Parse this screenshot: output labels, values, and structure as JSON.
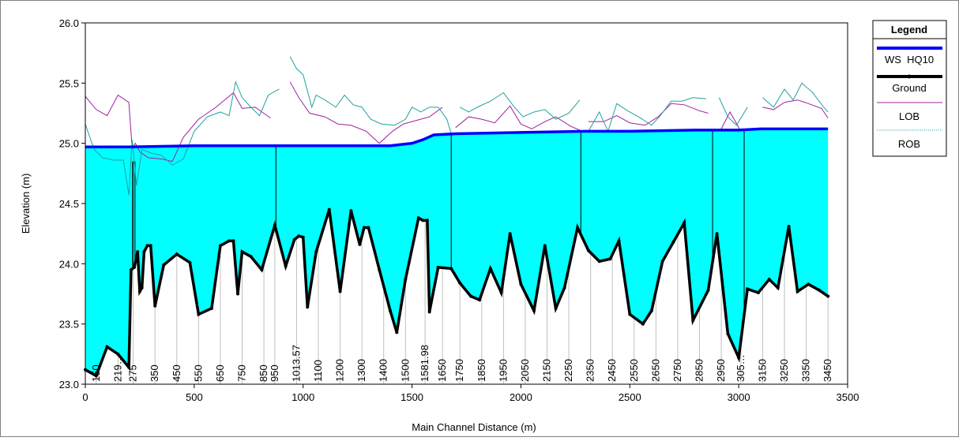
{
  "chart_data": {
    "type": "line",
    "title": "",
    "xlabel": "Main Channel Distance (m)",
    "ylabel": "Elevation (m)",
    "xlim": [
      0,
      3500
    ],
    "ylim": [
      23.0,
      26.0
    ],
    "x_ticks": [
      0,
      500,
      1000,
      1500,
      2000,
      2500,
      3000,
      3500
    ],
    "y_ticks": [
      "23.0",
      "23.5",
      "24.0",
      "24.5",
      "25.0",
      "25.5",
      "26.0"
    ],
    "grid": false,
    "legend": {
      "title": "Legend",
      "placement": "right",
      "entries": [
        {
          "label": "WS  HQ10",
          "color": "#0000ff",
          "style": "thick-line"
        },
        {
          "label": "Ground",
          "color": "#000000",
          "style": "thick-line-markers"
        },
        {
          "label": "LOB",
          "color": "#a020a0",
          "style": "thin-line"
        },
        {
          "label": "ROB",
          "color": "#20a0a0",
          "style": "dotted-line"
        }
      ]
    },
    "water_fill_color": "#00ffff",
    "series": [
      {
        "name": "WS  HQ10",
        "color": "#0000ff",
        "points": [
          [
            0,
            24.97
          ],
          [
            200,
            24.97
          ],
          [
            500,
            24.98
          ],
          [
            1000,
            24.98
          ],
          [
            1400,
            24.98
          ],
          [
            1500,
            25.0
          ],
          [
            1550,
            25.03
          ],
          [
            1600,
            25.07
          ],
          [
            1700,
            25.08
          ],
          [
            2000,
            25.09
          ],
          [
            2300,
            25.1
          ],
          [
            2500,
            25.1
          ],
          [
            2800,
            25.11
          ],
          [
            3000,
            25.11
          ],
          [
            3100,
            25.12
          ],
          [
            3410,
            25.12
          ]
        ]
      },
      {
        "name": "Ground",
        "color": "#000000",
        "points": [
          [
            0,
            23.12
          ],
          [
            50,
            23.07
          ],
          [
            100,
            23.31
          ],
          [
            150,
            23.25
          ],
          [
            200,
            23.14
          ],
          [
            210,
            23.95
          ],
          [
            225,
            23.97
          ],
          [
            240,
            24.1
          ],
          [
            250,
            23.77
          ],
          [
            260,
            23.8
          ],
          [
            270,
            24.1
          ],
          [
            285,
            24.15
          ],
          [
            300,
            24.15
          ],
          [
            320,
            23.65
          ],
          [
            360,
            23.99
          ],
          [
            420,
            24.08
          ],
          [
            480,
            24.01
          ],
          [
            520,
            23.58
          ],
          [
            580,
            23.63
          ],
          [
            620,
            24.15
          ],
          [
            660,
            24.19
          ],
          [
            680,
            24.19
          ],
          [
            700,
            23.75
          ],
          [
            720,
            24.1
          ],
          [
            760,
            24.06
          ],
          [
            810,
            23.95
          ],
          [
            870,
            24.32
          ],
          [
            920,
            23.98
          ],
          [
            960,
            24.2
          ],
          [
            980,
            24.23
          ],
          [
            1000,
            24.22
          ],
          [
            1020,
            23.64
          ],
          [
            1060,
            24.1
          ],
          [
            1120,
            24.45
          ],
          [
            1170,
            23.77
          ],
          [
            1220,
            24.44
          ],
          [
            1260,
            24.16
          ],
          [
            1280,
            24.3
          ],
          [
            1300,
            24.3
          ],
          [
            1350,
            23.95
          ],
          [
            1400,
            23.61
          ],
          [
            1430,
            23.43
          ],
          [
            1470,
            23.87
          ],
          [
            1530,
            24.38
          ],
          [
            1550,
            24.36
          ],
          [
            1570,
            24.36
          ],
          [
            1580,
            23.6
          ],
          [
            1620,
            23.97
          ],
          [
            1680,
            23.96
          ],
          [
            1720,
            23.84
          ],
          [
            1770,
            23.73
          ],
          [
            1810,
            23.7
          ],
          [
            1860,
            23.96
          ],
          [
            1910,
            23.76
          ],
          [
            1950,
            24.25
          ],
          [
            2000,
            23.83
          ],
          [
            2060,
            23.61
          ],
          [
            2110,
            24.15
          ],
          [
            2160,
            23.63
          ],
          [
            2200,
            23.8
          ],
          [
            2260,
            24.3
          ],
          [
            2310,
            24.11
          ],
          [
            2360,
            24.02
          ],
          [
            2410,
            24.04
          ],
          [
            2450,
            24.19
          ],
          [
            2500,
            23.58
          ],
          [
            2560,
            23.5
          ],
          [
            2600,
            23.61
          ],
          [
            2650,
            24.02
          ],
          [
            2700,
            24.18
          ],
          [
            2750,
            24.34
          ],
          [
            2790,
            23.53
          ],
          [
            2860,
            23.78
          ],
          [
            2900,
            24.25
          ],
          [
            2950,
            23.42
          ],
          [
            3000,
            23.22
          ],
          [
            3040,
            23.79
          ],
          [
            3090,
            23.76
          ],
          [
            3140,
            23.87
          ],
          [
            3180,
            23.8
          ],
          [
            3230,
            24.31
          ],
          [
            3270,
            23.77
          ],
          [
            3320,
            23.83
          ],
          [
            3370,
            23.78
          ],
          [
            3410,
            23.73
          ]
        ]
      },
      {
        "name": "LOB",
        "color": "#a020a0",
        "segments": [
          [
            [
              0,
              25.39
            ],
            [
              50,
              25.28
            ],
            [
              100,
              25.23
            ],
            [
              150,
              25.4
            ],
            [
              200,
              25.34
            ],
            [
              215,
              24.96
            ],
            [
              230,
              25.0
            ],
            [
              250,
              24.93
            ],
            [
              290,
              24.88
            ],
            [
              350,
              24.87
            ],
            [
              400,
              24.85
            ],
            [
              450,
              25.05
            ],
            [
              520,
              25.2
            ],
            [
              600,
              25.3
            ],
            [
              680,
              25.42
            ],
            [
              720,
              25.29
            ],
            [
              780,
              25.3
            ],
            [
              850,
              25.21
            ]
          ],
          [
            [
              940,
              25.51
            ],
            [
              980,
              25.38
            ],
            [
              1030,
              25.25
            ],
            [
              1100,
              25.22
            ],
            [
              1160,
              25.16
            ],
            [
              1220,
              25.15
            ],
            [
              1290,
              25.1
            ],
            [
              1350,
              25.0
            ],
            [
              1410,
              25.1
            ],
            [
              1460,
              25.16
            ],
            [
              1520,
              25.19
            ],
            [
              1580,
              25.22
            ],
            [
              1640,
              25.3
            ]
          ],
          [
            [
              1700,
              25.13
            ],
            [
              1760,
              25.22
            ],
            [
              1820,
              25.2
            ],
            [
              1880,
              25.17
            ],
            [
              1950,
              25.31
            ],
            [
              2000,
              25.16
            ],
            [
              2050,
              25.12
            ],
            [
              2110,
              25.18
            ],
            [
              2160,
              25.22
            ],
            [
              2230,
              25.14
            ],
            [
              2270,
              25.11
            ]
          ],
          [
            [
              2310,
              25.18
            ],
            [
              2380,
              25.18
            ],
            [
              2440,
              25.23
            ],
            [
              2500,
              25.17
            ],
            [
              2570,
              25.15
            ],
            [
              2630,
              25.22
            ],
            [
              2690,
              25.33
            ],
            [
              2750,
              25.32
            ],
            [
              2820,
              25.27
            ],
            [
              2860,
              25.25
            ]
          ],
          [
            [
              2920,
              25.12
            ],
            [
              2960,
              25.26
            ],
            [
              3010,
              25.1
            ]
          ],
          [
            [
              3110,
              25.3
            ],
            [
              3160,
              25.28
            ],
            [
              3210,
              25.34
            ],
            [
              3270,
              25.36
            ],
            [
              3320,
              25.33
            ],
            [
              3380,
              25.29
            ],
            [
              3410,
              25.21
            ]
          ]
        ]
      },
      {
        "name": "ROB",
        "color": "#20a0a0",
        "segments": [
          [
            [
              0,
              25.16
            ],
            [
              40,
              24.95
            ],
            [
              80,
              24.88
            ],
            [
              130,
              24.86
            ],
            [
              175,
              24.86
            ],
            [
              200,
              24.57
            ],
            [
              215,
              25.03
            ],
            [
              235,
              24.65
            ],
            [
              260,
              24.95
            ],
            [
              300,
              24.92
            ],
            [
              350,
              24.9
            ],
            [
              400,
              24.82
            ],
            [
              450,
              24.87
            ],
            [
              500,
              25.1
            ],
            [
              560,
              25.22
            ],
            [
              620,
              25.26
            ],
            [
              660,
              25.23
            ],
            [
              690,
              25.51
            ],
            [
              720,
              25.38
            ],
            [
              760,
              25.3
            ],
            [
              800,
              25.23
            ],
            [
              840,
              25.4
            ],
            [
              890,
              25.45
            ]
          ],
          [
            [
              940,
              25.72
            ],
            [
              970,
              25.62
            ],
            [
              1000,
              25.57
            ],
            [
              1040,
              25.3
            ],
            [
              1060,
              25.4
            ],
            [
              1100,
              25.36
            ],
            [
              1150,
              25.3
            ],
            [
              1190,
              25.4
            ],
            [
              1230,
              25.32
            ],
            [
              1270,
              25.3
            ],
            [
              1310,
              25.2
            ],
            [
              1360,
              25.16
            ],
            [
              1420,
              25.15
            ],
            [
              1470,
              25.2
            ],
            [
              1500,
              25.3
            ],
            [
              1540,
              25.26
            ],
            [
              1580,
              25.3
            ],
            [
              1620,
              25.3
            ],
            [
              1660,
              25.2
            ],
            [
              1680,
              25.08
            ]
          ],
          [
            [
              1720,
              25.3
            ],
            [
              1760,
              25.26
            ],
            [
              1800,
              25.3
            ],
            [
              1860,
              25.35
            ],
            [
              1920,
              25.42
            ],
            [
              1970,
              25.3
            ],
            [
              2010,
              25.22
            ],
            [
              2060,
              25.26
            ],
            [
              2110,
              25.28
            ],
            [
              2160,
              25.2
            ],
            [
              2220,
              25.25
            ],
            [
              2270,
              25.36
            ]
          ],
          [
            [
              2310,
              25.1
            ],
            [
              2360,
              25.26
            ],
            [
              2400,
              25.1
            ],
            [
              2440,
              25.33
            ],
            [
              2490,
              25.27
            ],
            [
              2540,
              25.22
            ],
            [
              2600,
              25.15
            ],
            [
              2640,
              25.23
            ],
            [
              2690,
              25.35
            ],
            [
              2740,
              25.35
            ],
            [
              2790,
              25.38
            ],
            [
              2850,
              25.37
            ]
          ],
          [
            [
              2910,
              25.38
            ],
            [
              2950,
              25.22
            ],
            [
              2990,
              25.15
            ],
            [
              3040,
              25.3
            ]
          ],
          [
            [
              3110,
              25.38
            ],
            [
              3160,
              25.3
            ],
            [
              3210,
              25.45
            ],
            [
              3250,
              25.36
            ],
            [
              3290,
              25.5
            ],
            [
              3340,
              25.42
            ],
            [
              3390,
              25.3
            ],
            [
              3410,
              25.26
            ]
          ]
        ]
      }
    ],
    "stations": [
      {
        "label": "150",
        "x": 50
      },
      {
        "label": "219…",
        "x": 150
      },
      {
        "label": "275",
        "x": 220
      },
      {
        "label": "350",
        "x": 320
      },
      {
        "label": "450",
        "x": 420
      },
      {
        "label": "550",
        "x": 520
      },
      {
        "label": "650",
        "x": 620
      },
      {
        "label": "750",
        "x": 720
      },
      {
        "label": "850",
        "x": 820
      },
      {
        "label": "950",
        "x": 870
      },
      {
        "label": "1013.57",
        "x": 970
      },
      {
        "label": "1100",
        "x": 1070
      },
      {
        "label": "1200",
        "x": 1170
      },
      {
        "label": "1300",
        "x": 1270
      },
      {
        "label": "1400",
        "x": 1370
      },
      {
        "label": "1500",
        "x": 1470
      },
      {
        "label": "1581.98",
        "x": 1560
      },
      {
        "label": "1650",
        "x": 1640
      },
      {
        "label": "1750",
        "x": 1720
      },
      {
        "label": "1850",
        "x": 1820
      },
      {
        "label": "1950",
        "x": 1920
      },
      {
        "label": "2050",
        "x": 2020
      },
      {
        "label": "2150",
        "x": 2120
      },
      {
        "label": "2250",
        "x": 2220
      },
      {
        "label": "2350",
        "x": 2320
      },
      {
        "label": "2450",
        "x": 2420
      },
      {
        "label": "2550",
        "x": 2520
      },
      {
        "label": "2650",
        "x": 2620
      },
      {
        "label": "2750",
        "x": 2720
      },
      {
        "label": "2850",
        "x": 2820
      },
      {
        "label": "2950",
        "x": 2920
      },
      {
        "label": "305…",
        "x": 3010
      },
      {
        "label": "3150",
        "x": 3110
      },
      {
        "label": "3250",
        "x": 3210
      },
      {
        "label": "3350",
        "x": 3310
      },
      {
        "label": "3450",
        "x": 3410
      }
    ],
    "bridge_lines": [
      875,
      1680,
      2275,
      2880,
      3025
    ]
  }
}
